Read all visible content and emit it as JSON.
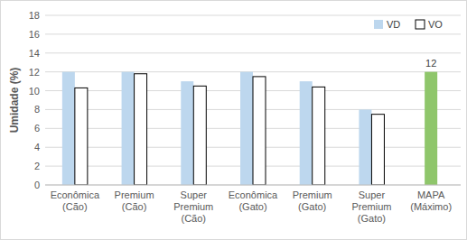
{
  "chart_data": {
    "type": "bar",
    "y_label": "Umidade (%)",
    "categories": [
      "Econômica (Cão)",
      "Premium (Cão)",
      "Super Premium (Cão)",
      "Econômica (Gato)",
      "Premium (Gato)",
      "Super Premium (Gato)",
      "MAPA (Máximo)"
    ],
    "series": [
      {
        "name": "VD",
        "color": "#bdd7ee",
        "values": [
          12,
          12,
          11,
          12,
          11,
          8,
          null
        ]
      },
      {
        "name": "VO",
        "color": "#ffffff",
        "values": [
          10.3,
          11.8,
          10.5,
          11.5,
          10.4,
          7.5,
          null
        ]
      },
      {
        "color": "#8fc66b",
        "data_labels": true,
        "values": [
          null,
          null,
          null,
          null,
          null,
          null,
          12
        ]
      }
    ],
    "ylim": [
      0,
      18
    ],
    "yticks": [
      0,
      2,
      4,
      6,
      8,
      10,
      12,
      14,
      16,
      18
    ],
    "grid": true,
    "legend": "top-right"
  }
}
